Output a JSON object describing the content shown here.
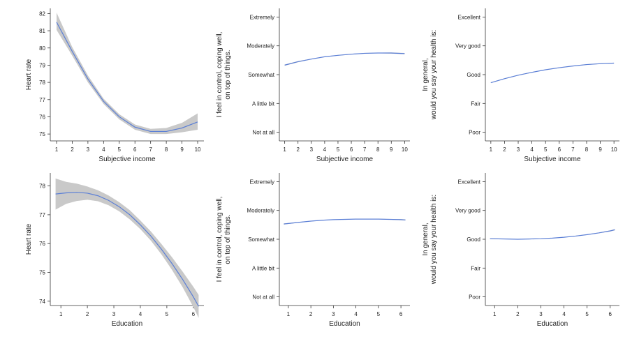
{
  "chart_data": [
    {
      "id": "hr-income",
      "type": "line",
      "xlabel": "Subjective income",
      "ylabel": [
        "Heart rate"
      ],
      "x": [
        1,
        2,
        3,
        4,
        5,
        6,
        7,
        8,
        9,
        10
      ],
      "xticks": [
        "1",
        "2",
        "3",
        "4",
        "5",
        "6",
        "7",
        "8",
        "9",
        "10"
      ],
      "xlim": [
        0.6,
        10.4
      ],
      "ylim": [
        74.6,
        82.3
      ],
      "yticks": [
        {
          "value": 75,
          "label": "75"
        },
        {
          "value": 76,
          "label": "76"
        },
        {
          "value": 77,
          "label": "77"
        },
        {
          "value": 78,
          "label": "78"
        },
        {
          "value": 79,
          "label": "79"
        },
        {
          "value": 80,
          "label": "80"
        },
        {
          "value": 81,
          "label": "81"
        },
        {
          "value": 82,
          "label": "82"
        }
      ],
      "series": [
        {
          "name": "fit",
          "values": [
            81.5,
            79.8,
            78.2,
            76.9,
            76.0,
            75.4,
            75.15,
            75.15,
            75.35,
            75.7
          ],
          "ci_lower": [
            81.05,
            79.55,
            78.0,
            76.75,
            75.85,
            75.25,
            75.0,
            75.0,
            75.1,
            75.25
          ],
          "ci_upper": [
            82.05,
            80.05,
            78.4,
            77.05,
            76.15,
            75.55,
            75.3,
            75.35,
            75.65,
            76.2
          ]
        }
      ]
    },
    {
      "id": "control-income",
      "type": "line",
      "xlabel": "Subjective income",
      "ylabel": [
        "I feel in control, coping well,",
        "on top of things."
      ],
      "x": [
        1,
        2,
        3,
        4,
        5,
        6,
        7,
        8,
        9,
        10
      ],
      "xticks": [
        "1",
        "2",
        "3",
        "4",
        "5",
        "6",
        "7",
        "8",
        "9",
        "10"
      ],
      "xlim": [
        0.6,
        10.4
      ],
      "ylim": [
        0.7,
        5.3
      ],
      "yticks": [
        {
          "value": 1,
          "label": "Not at all"
        },
        {
          "value": 2,
          "label": "A little bit"
        },
        {
          "value": 3,
          "label": "Somewhat"
        },
        {
          "value": 4,
          "label": "Moderately"
        },
        {
          "value": 5,
          "label": "Extremely"
        }
      ],
      "series": [
        {
          "name": "fit",
          "values": [
            3.33,
            3.45,
            3.54,
            3.62,
            3.67,
            3.71,
            3.74,
            3.75,
            3.75,
            3.73
          ],
          "ci_lower": [
            3.31,
            3.43,
            3.53,
            3.61,
            3.66,
            3.7,
            3.73,
            3.74,
            3.73,
            3.71
          ],
          "ci_upper": [
            3.35,
            3.47,
            3.55,
            3.63,
            3.68,
            3.72,
            3.75,
            3.76,
            3.77,
            3.75
          ]
        }
      ]
    },
    {
      "id": "health-income",
      "type": "line",
      "xlabel": "Subjective income",
      "ylabel": [
        "In general,",
        "would you say your health is:"
      ],
      "x": [
        1,
        2,
        3,
        4,
        5,
        6,
        7,
        8,
        9,
        10
      ],
      "xticks": [
        "1",
        "2",
        "3",
        "4",
        "5",
        "6",
        "7",
        "8",
        "9",
        "10"
      ],
      "xlim": [
        0.6,
        10.4
      ],
      "ylim": [
        0.7,
        5.3
      ],
      "yticks": [
        {
          "value": 1,
          "label": "Poor"
        },
        {
          "value": 2,
          "label": "Fair"
        },
        {
          "value": 3,
          "label": "Good"
        },
        {
          "value": 4,
          "label": "Very good"
        },
        {
          "value": 5,
          "label": "Excellent"
        }
      ],
      "series": [
        {
          "name": "fit",
          "values": [
            2.72,
            2.86,
            2.98,
            3.08,
            3.17,
            3.24,
            3.3,
            3.35,
            3.38,
            3.4
          ],
          "ci_lower": [
            2.71,
            2.85,
            2.97,
            3.07,
            3.16,
            3.23,
            3.29,
            3.34,
            3.37,
            3.39
          ],
          "ci_upper": [
            2.73,
            2.87,
            2.99,
            3.09,
            3.18,
            3.25,
            3.31,
            3.36,
            3.39,
            3.41
          ]
        }
      ]
    },
    {
      "id": "hr-education",
      "type": "line",
      "xlabel": "Education",
      "ylabel": [
        "Heart rate"
      ],
      "x": [
        0.8,
        1.2,
        1.6,
        2.0,
        2.4,
        2.8,
        3.2,
        3.6,
        4.0,
        4.4,
        4.8,
        5.2,
        5.6,
        6.0,
        6.2
      ],
      "xticks": [
        "1",
        "2",
        "3",
        "4",
        "5",
        "6"
      ],
      "xtick_values": [
        1,
        2,
        3,
        4,
        5,
        6
      ],
      "xlim": [
        0.6,
        6.4
      ],
      "ylim": [
        73.85,
        78.45
      ],
      "yticks": [
        {
          "value": 74,
          "label": "74"
        },
        {
          "value": 75,
          "label": "75"
        },
        {
          "value": 76,
          "label": "76"
        },
        {
          "value": 77,
          "label": "77"
        },
        {
          "value": 78,
          "label": "78"
        }
      ],
      "series": [
        {
          "name": "fit",
          "values": [
            77.72,
            77.76,
            77.78,
            77.75,
            77.66,
            77.5,
            77.28,
            77.0,
            76.65,
            76.26,
            75.8,
            75.3,
            74.75,
            74.15,
            73.82
          ],
          "ci_lower": [
            77.18,
            77.38,
            77.48,
            77.52,
            77.47,
            77.33,
            77.12,
            76.84,
            76.5,
            76.1,
            75.62,
            75.08,
            74.48,
            73.8,
            73.42
          ],
          "ci_upper": [
            78.26,
            78.14,
            78.08,
            77.98,
            77.85,
            77.67,
            77.44,
            77.16,
            76.8,
            76.42,
            75.98,
            75.52,
            75.02,
            74.5,
            74.22
          ]
        }
      ]
    },
    {
      "id": "control-education",
      "type": "line",
      "xlabel": "Education",
      "ylabel": [
        "I feel in control, coping well,",
        "on top of things."
      ],
      "x": [
        0.8,
        1.5,
        2.0,
        2.5,
        3.0,
        3.5,
        4.0,
        4.5,
        5.0,
        5.5,
        6.0,
        6.2
      ],
      "xticks": [
        "1",
        "2",
        "3",
        "4",
        "5",
        "6"
      ],
      "xtick_values": [
        1,
        2,
        3,
        4,
        5,
        6
      ],
      "xlim": [
        0.6,
        6.4
      ],
      "ylim": [
        0.7,
        5.3
      ],
      "yticks": [
        {
          "value": 1,
          "label": "Not at all"
        },
        {
          "value": 2,
          "label": "A little bit"
        },
        {
          "value": 3,
          "label": "Somewhat"
        },
        {
          "value": 4,
          "label": "Moderately"
        },
        {
          "value": 5,
          "label": "Extremely"
        }
      ],
      "series": [
        {
          "name": "fit",
          "values": [
            3.53,
            3.59,
            3.63,
            3.66,
            3.68,
            3.69,
            3.7,
            3.7,
            3.7,
            3.69,
            3.68,
            3.67
          ],
          "ci_lower": [
            3.51,
            3.58,
            3.62,
            3.65,
            3.675,
            3.685,
            3.695,
            3.695,
            3.69,
            3.68,
            3.66,
            3.65
          ],
          "ci_upper": [
            3.55,
            3.6,
            3.64,
            3.67,
            3.685,
            3.695,
            3.705,
            3.705,
            3.71,
            3.7,
            3.7,
            3.69
          ]
        }
      ]
    },
    {
      "id": "health-education",
      "type": "line",
      "xlabel": "Education",
      "ylabel": [
        "In general,",
        "would you say your health is:"
      ],
      "x": [
        0.8,
        1.5,
        2.0,
        2.5,
        3.0,
        3.5,
        4.0,
        4.5,
        5.0,
        5.5,
        6.0,
        6.2
      ],
      "xticks": [
        "1",
        "2",
        "3",
        "4",
        "5",
        "6"
      ],
      "xtick_values": [
        1,
        2,
        3,
        4,
        5,
        6
      ],
      "xlim": [
        0.6,
        6.4
      ],
      "ylim": [
        0.7,
        5.3
      ],
      "yticks": [
        {
          "value": 1,
          "label": "Poor"
        },
        {
          "value": 2,
          "label": "Fair"
        },
        {
          "value": 3,
          "label": "Good"
        },
        {
          "value": 4,
          "label": "Very good"
        },
        {
          "value": 5,
          "label": "Excellent"
        }
      ],
      "series": [
        {
          "name": "fit",
          "values": [
            3.02,
            3.01,
            3.0,
            3.01,
            3.02,
            3.04,
            3.07,
            3.11,
            3.16,
            3.22,
            3.29,
            3.33
          ],
          "ci_lower": [
            3.01,
            3.0,
            2.995,
            3.005,
            3.015,
            3.035,
            3.065,
            3.1,
            3.15,
            3.21,
            3.27,
            3.31
          ],
          "ci_upper": [
            3.03,
            3.02,
            3.005,
            3.015,
            3.025,
            3.045,
            3.075,
            3.12,
            3.17,
            3.23,
            3.31,
            3.35
          ]
        }
      ]
    }
  ]
}
